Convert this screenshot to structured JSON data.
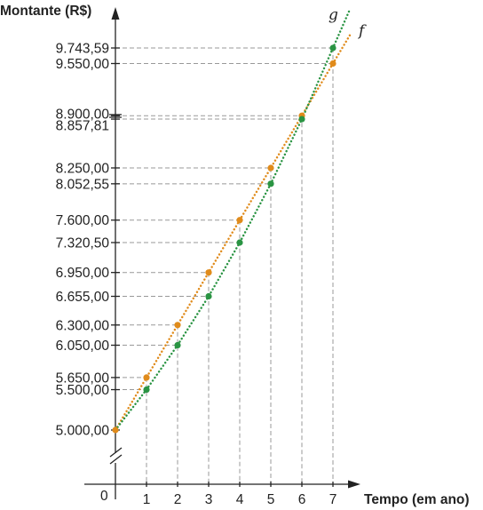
{
  "chart_data": {
    "type": "scatter",
    "ylabel": "Montante (R$)",
    "xlabel": "Tempo (em ano)",
    "origin_label": "0",
    "x": [
      1,
      2,
      3,
      4,
      5,
      6,
      7
    ],
    "x_ticks": [
      "1",
      "2",
      "3",
      "4",
      "5",
      "6",
      "7"
    ],
    "start_value": 5000,
    "start_label": "5.000,00",
    "series": [
      {
        "name": "f",
        "color": "#e08b1b",
        "values": [
          5650,
          6300,
          6950,
          7600,
          8250,
          8900,
          9550
        ],
        "labels": [
          "5.650,00",
          "6.300,00",
          "6.950,00",
          "7.600,00",
          "8.250,00",
          "8.900,00",
          "9.550,00"
        ]
      },
      {
        "name": "g",
        "color": "#2a9443",
        "values": [
          5500,
          6050,
          6655,
          7320.5,
          8052.55,
          8857.81,
          9743.59
        ],
        "labels": [
          "5.500,00",
          "6.050,00",
          "6.655,00",
          "7.320,50",
          "8.052,55",
          "8.857,81",
          "9.743,59"
        ]
      }
    ],
    "axis_break": true,
    "grid": false,
    "guide_lines": "dashed"
  }
}
